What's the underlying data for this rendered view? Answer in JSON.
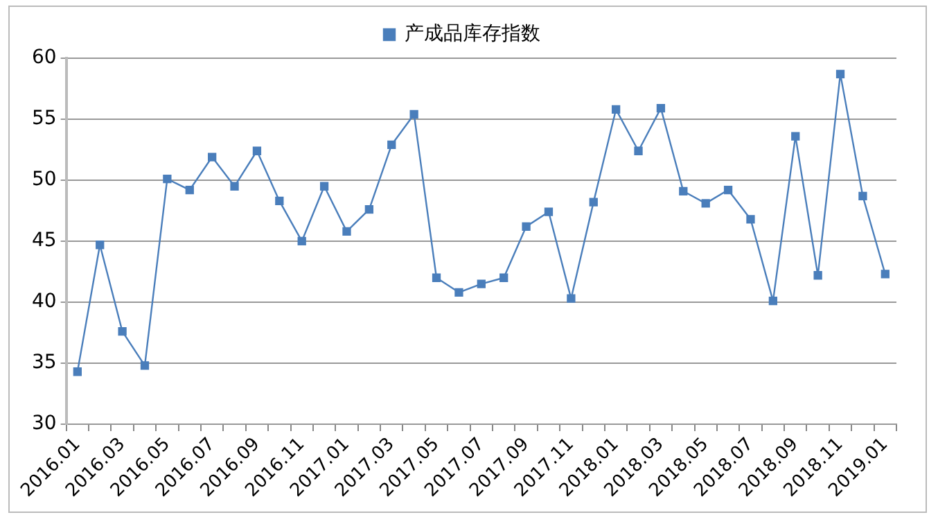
{
  "chart_data": {
    "type": "line",
    "categories": [
      "2016.01",
      null,
      "2016.03",
      null,
      "2016.05",
      null,
      "2016.07",
      null,
      "2016.09",
      null,
      "2016.11",
      null,
      "2017.01",
      null,
      "2017.03",
      null,
      "2017.05",
      null,
      "2017.07",
      null,
      "2017.09",
      null,
      "2017.11",
      null,
      "2018.01",
      null,
      "2018.03",
      null,
      "2018.05",
      null,
      "2018.07",
      null,
      "2018.09",
      null,
      "2018.11",
      null,
      "2019.01"
    ],
    "series": [
      {
        "name": "产成品库存指数",
        "color": "#4a7ebb",
        "values": [
          34.3,
          44.7,
          37.6,
          34.8,
          50.1,
          49.2,
          51.9,
          49.5,
          52.4,
          48.3,
          45.0,
          49.5,
          45.8,
          47.6,
          52.9,
          55.4,
          42.0,
          40.8,
          41.5,
          42.0,
          46.2,
          47.4,
          40.3,
          48.2,
          55.8,
          52.4,
          55.9,
          49.1,
          48.1,
          49.2,
          46.8,
          40.1,
          53.6,
          42.2,
          58.7,
          48.7,
          42.3
        ]
      }
    ],
    "ylim": [
      30,
      60
    ],
    "yticks": [
      30,
      35,
      40,
      45,
      50,
      55,
      60
    ],
    "grid": "y",
    "legend": "top",
    "marker": "square",
    "line_style": "solid"
  }
}
